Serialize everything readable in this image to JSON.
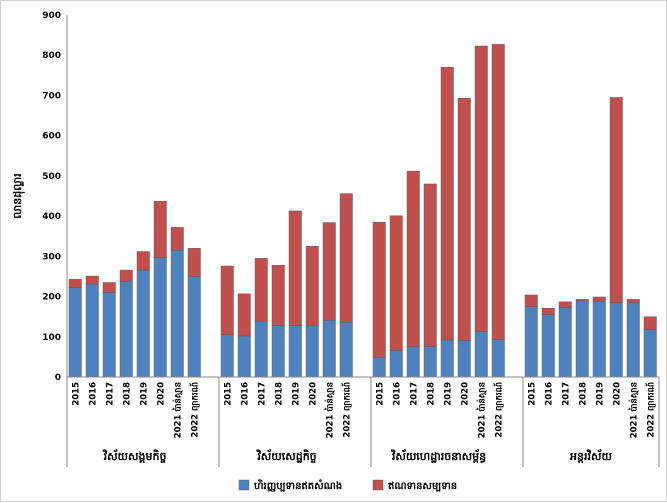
{
  "chart_data": {
    "type": "bar",
    "stacked": true,
    "ylabel": "លានដុល្លារ",
    "ylim": [
      0,
      900
    ],
    "yticks": [
      0,
      100,
      200,
      300,
      400,
      500,
      600,
      700,
      800,
      900
    ],
    "grid": false,
    "legend_position": "bottom",
    "categories": [
      "2015",
      "2016",
      "2017",
      "2018",
      "2019",
      "2020",
      "2021 ប៉ាន់ស្មាន",
      "2022 ព្យាករណ៍"
    ],
    "groups": [
      {
        "name": "វិស័យសង្គមកិច្ច",
        "series": [
          {
            "name": "ហិរញ្ញប្បទានឥតសំណង",
            "values": [
              222,
              231,
              210,
              238,
              266,
              297,
              315,
              250
            ]
          },
          {
            "name": "ឥណទានសម្បទាន",
            "values": [
              21,
              20,
              25,
              28,
              46,
              140,
              57,
              70
            ]
          }
        ]
      },
      {
        "name": "វិស័យសេដ្ឋកិច្ច",
        "series": [
          {
            "name": "ហិរញ្ញប្បទានឥតសំណង",
            "values": [
              105,
              102,
              139,
              128,
              128,
              127,
              141,
              136
            ]
          },
          {
            "name": "ឥណទានសម្បទាន",
            "values": [
              171,
              105,
              156,
              150,
              285,
              198,
              243,
              320
            ]
          }
        ]
      },
      {
        "name": "វិស័យហេដ្ឋារចនាសម្ព័ន្ធ",
        "series": [
          {
            "name": "ហិរញ្ញប្បទានឥតសំណង",
            "values": [
              49,
              66,
              75,
              76,
              92,
              91,
              113,
              93
            ]
          },
          {
            "name": "ឥណទានសម្បទាន",
            "values": [
              336,
              335,
              437,
              404,
              678,
              602,
              710,
              734
            ]
          }
        ]
      },
      {
        "name": "អន្តរវិស័យ",
        "series": [
          {
            "name": "ហិរញ្ញប្បទានឥតសំណង",
            "values": [
              175,
              155,
              173,
              190,
              188,
              185,
              185,
              118
            ]
          },
          {
            "name": "ឥណទានសម្បទាន",
            "values": [
              29,
              16,
              14,
              3,
              11,
              510,
              8,
              32
            ]
          }
        ]
      }
    ],
    "legend": [
      {
        "name": "ហិរញ្ញប្បទានឥតសំណង",
        "color": "#4f81bd"
      },
      {
        "name": "ឥណទានសម្បទាន",
        "color": "#c0504d"
      }
    ]
  }
}
